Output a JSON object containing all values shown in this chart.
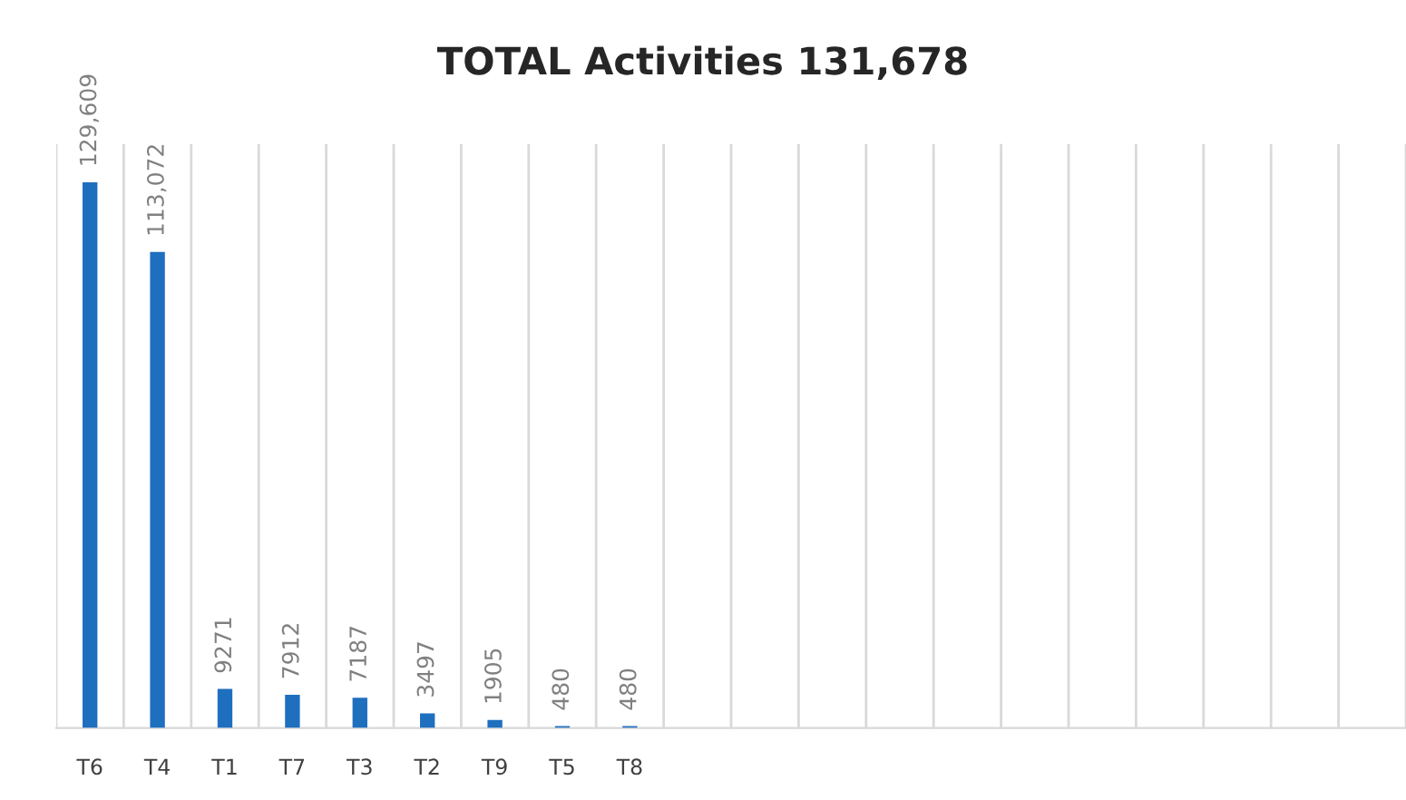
{
  "chart_data": {
    "type": "bar",
    "title": "TOTAL Activities 131,678",
    "categories": [
      "T6",
      "T4",
      "T1",
      "T7",
      "T3",
      "T2",
      "T9",
      "T5",
      "T8",
      null,
      null,
      null,
      null,
      null,
      null,
      null,
      null,
      null,
      null,
      null
    ],
    "values": [
      129609,
      113072,
      9271,
      7912,
      7187,
      3497,
      1905,
      480,
      480,
      null,
      null,
      null,
      null,
      null,
      null,
      null,
      null,
      null,
      null,
      null
    ],
    "value_labels": [
      "129,609",
      "113,072",
      "9271",
      "7912",
      "7187",
      "3497",
      "1905",
      "480",
      "480",
      null,
      null,
      null,
      null,
      null,
      null,
      null,
      null,
      null,
      null,
      null
    ],
    "color": "#1f6fbf",
    "grid": "x"
  }
}
